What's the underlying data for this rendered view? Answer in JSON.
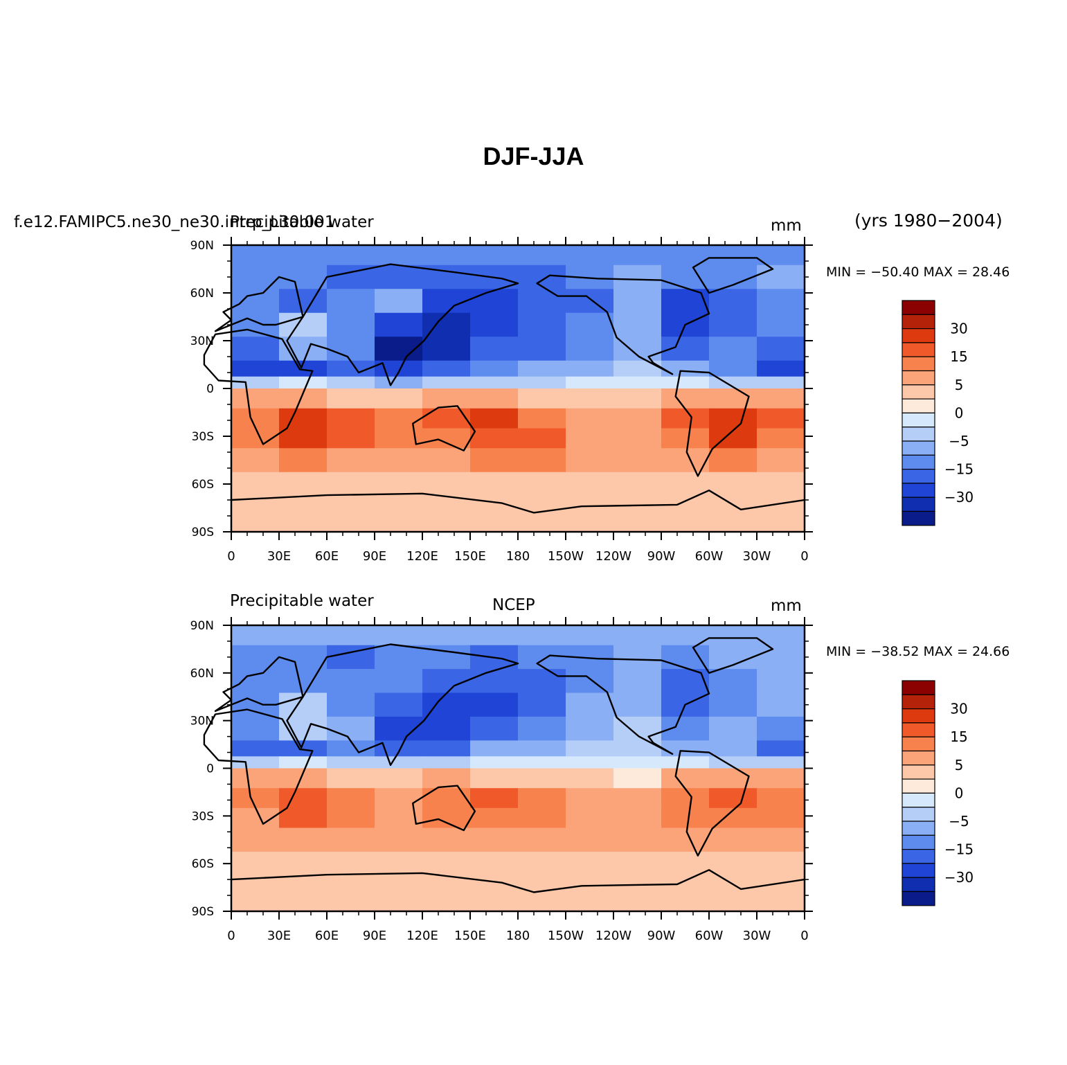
{
  "figure": {
    "title": "DJF-JJA",
    "years": "(yrs 1980−2004)"
  },
  "panels": [
    {
      "case": "f.e12.FAMIPC5.ne30_ne30.intrp_L30.001",
      "variable": "Precipitable water",
      "center": "",
      "units": "mm",
      "minmax": "MIN = −50.40  MAX =  28.46"
    },
    {
      "case": "",
      "variable": "Precipitable water",
      "center": "NCEP",
      "units": "mm",
      "minmax": "MIN = −38.52  MAX =  24.66"
    }
  ],
  "colorbar": {
    "labels": [
      "30",
      "15",
      "5",
      "0",
      "−5",
      "−15",
      "−30"
    ],
    "colors": [
      "#8b0000",
      "#b5220a",
      "#de3a10",
      "#f05a2a",
      "#f7824d",
      "#fba47a",
      "#fdc7aa",
      "#feeadb",
      "#d6e9fc",
      "#b4cef8",
      "#8aaff4",
      "#5e8cee",
      "#3a66e6",
      "#1f44d6",
      "#102eb0",
      "#0a1b8a"
    ]
  },
  "axes": {
    "x_ticks": [
      "0",
      "30E",
      "60E",
      "90E",
      "120E",
      "150E",
      "180",
      "150W",
      "120W",
      "90W",
      "60W",
      "30W",
      "0"
    ],
    "y_ticks": [
      "90N",
      "60N",
      "30N",
      "0",
      "30S",
      "60S",
      "90S"
    ]
  },
  "chart_data": [
    {
      "type": "heatmap",
      "title": "DJF-JJA",
      "subtitle": "Precipitable water",
      "units": "mm",
      "projection": "cylindrical equidistant, 0-360 longitude",
      "xlim": [
        0,
        360
      ],
      "ylim": [
        -90,
        90
      ],
      "field_min": -50.4,
      "field_max": 28.46,
      "contour_levels": [
        -30,
        -15,
        -5,
        0,
        5,
        15,
        30
      ],
      "rows_lat": [
        85,
        70,
        55,
        40,
        25,
        10,
        5,
        -5,
        -20,
        -30,
        -45,
        -60,
        -75,
        -85
      ],
      "cols_lon": [
        0,
        30,
        60,
        90,
        120,
        150,
        180,
        210,
        240,
        270,
        300,
        330
      ],
      "values": [
        [
          -15,
          -15,
          -15,
          -15,
          -15,
          -15,
          -15,
          -15,
          -15,
          -15,
          -15,
          -15
        ],
        [
          -15,
          -15,
          -22,
          -22,
          -25,
          -25,
          -20,
          -15,
          -10,
          -15,
          -15,
          -10
        ],
        [
          -15,
          -22,
          -15,
          -10,
          -30,
          -30,
          -25,
          -18,
          -10,
          -30,
          -20,
          -12
        ],
        [
          -15,
          -5,
          -15,
          -30,
          -40,
          -28,
          -22,
          -15,
          -10,
          -30,
          -25,
          -15
        ],
        [
          -25,
          -10,
          -15,
          -45,
          -40,
          -22,
          -18,
          -15,
          -8,
          -18,
          -15,
          -22
        ],
        [
          -30,
          -30,
          -18,
          -30,
          -25,
          -15,
          -10,
          -8,
          -5,
          -10,
          -15,
          -30
        ],
        [
          -3,
          -2,
          -5,
          -8,
          -3,
          -3,
          -3,
          -2,
          -2,
          -2,
          -3,
          -3
        ],
        [
          8,
          8,
          2,
          2,
          8,
          5,
          3,
          2,
          2,
          5,
          8,
          8
        ],
        [
          12,
          25,
          18,
          10,
          15,
          20,
          12,
          8,
          8,
          15,
          25,
          15
        ],
        [
          10,
          20,
          15,
          10,
          12,
          18,
          15,
          8,
          6,
          12,
          20,
          12
        ],
        [
          8,
          10,
          8,
          8,
          8,
          10,
          10,
          8,
          6,
          8,
          10,
          8
        ],
        [
          4,
          4,
          4,
          4,
          4,
          4,
          4,
          4,
          4,
          4,
          4,
          4
        ],
        [
          2,
          2,
          2,
          2,
          2,
          2,
          2,
          2,
          2,
          2,
          2,
          2
        ],
        [
          2,
          2,
          2,
          2,
          2,
          2,
          2,
          2,
          2,
          2,
          2,
          2
        ]
      ]
    },
    {
      "type": "heatmap",
      "title": "DJF-JJA",
      "subtitle": "Precipitable water",
      "units": "mm",
      "projection": "cylindrical equidistant, 0-360 longitude",
      "xlim": [
        0,
        360
      ],
      "ylim": [
        -90,
        90
      ],
      "field_min": -38.52,
      "field_max": 24.66,
      "contour_levels": [
        -30,
        -15,
        -5,
        0,
        5,
        15,
        30
      ],
      "rows_lat": [
        85,
        70,
        55,
        40,
        25,
        10,
        5,
        -5,
        -20,
        -30,
        -45,
        -60,
        -75,
        -85
      ],
      "cols_lon": [
        0,
        30,
        60,
        90,
        120,
        150,
        180,
        210,
        240,
        270,
        300,
        330
      ],
      "values": [
        [
          -10,
          -10,
          -10,
          -10,
          -10,
          -10,
          -10,
          -10,
          -10,
          -10,
          -10,
          -10
        ],
        [
          -15,
          -12,
          -18,
          -15,
          -15,
          -18,
          -15,
          -12,
          -8,
          -12,
          -10,
          -8
        ],
        [
          -12,
          -15,
          -12,
          -15,
          -25,
          -25,
          -20,
          -15,
          -10,
          -25,
          -15,
          -10
        ],
        [
          -12,
          -5,
          -12,
          -25,
          -30,
          -28,
          -18,
          -10,
          -8,
          -25,
          -15,
          -10
        ],
        [
          -15,
          -5,
          -10,
          -30,
          -30,
          -20,
          -12,
          -8,
          -5,
          -12,
          -10,
          -15
        ],
        [
          -20,
          -20,
          -12,
          -25,
          -20,
          -10,
          -8,
          -5,
          -5,
          -8,
          -10,
          -20
        ],
        [
          -3,
          -2,
          -3,
          -5,
          -3,
          -2,
          -2,
          -2,
          -2,
          -2,
          -3,
          -3
        ],
        [
          6,
          5,
          2,
          2,
          5,
          3,
          2,
          2,
          1,
          5,
          8,
          6
        ],
        [
          10,
          18,
          10,
          8,
          12,
          15,
          10,
          6,
          6,
          10,
          15,
          12
        ],
        [
          8,
          15,
          12,
          8,
          10,
          14,
          12,
          6,
          5,
          10,
          12,
          10
        ],
        [
          6,
          8,
          8,
          6,
          8,
          8,
          8,
          6,
          5,
          8,
          8,
          6
        ],
        [
          4,
          4,
          4,
          4,
          4,
          4,
          4,
          4,
          4,
          4,
          4,
          4
        ],
        [
          2,
          2,
          2,
          2,
          2,
          2,
          2,
          2,
          2,
          2,
          2,
          2
        ],
        [
          2,
          2,
          2,
          2,
          2,
          2,
          2,
          2,
          2,
          2,
          2,
          2
        ]
      ]
    }
  ]
}
